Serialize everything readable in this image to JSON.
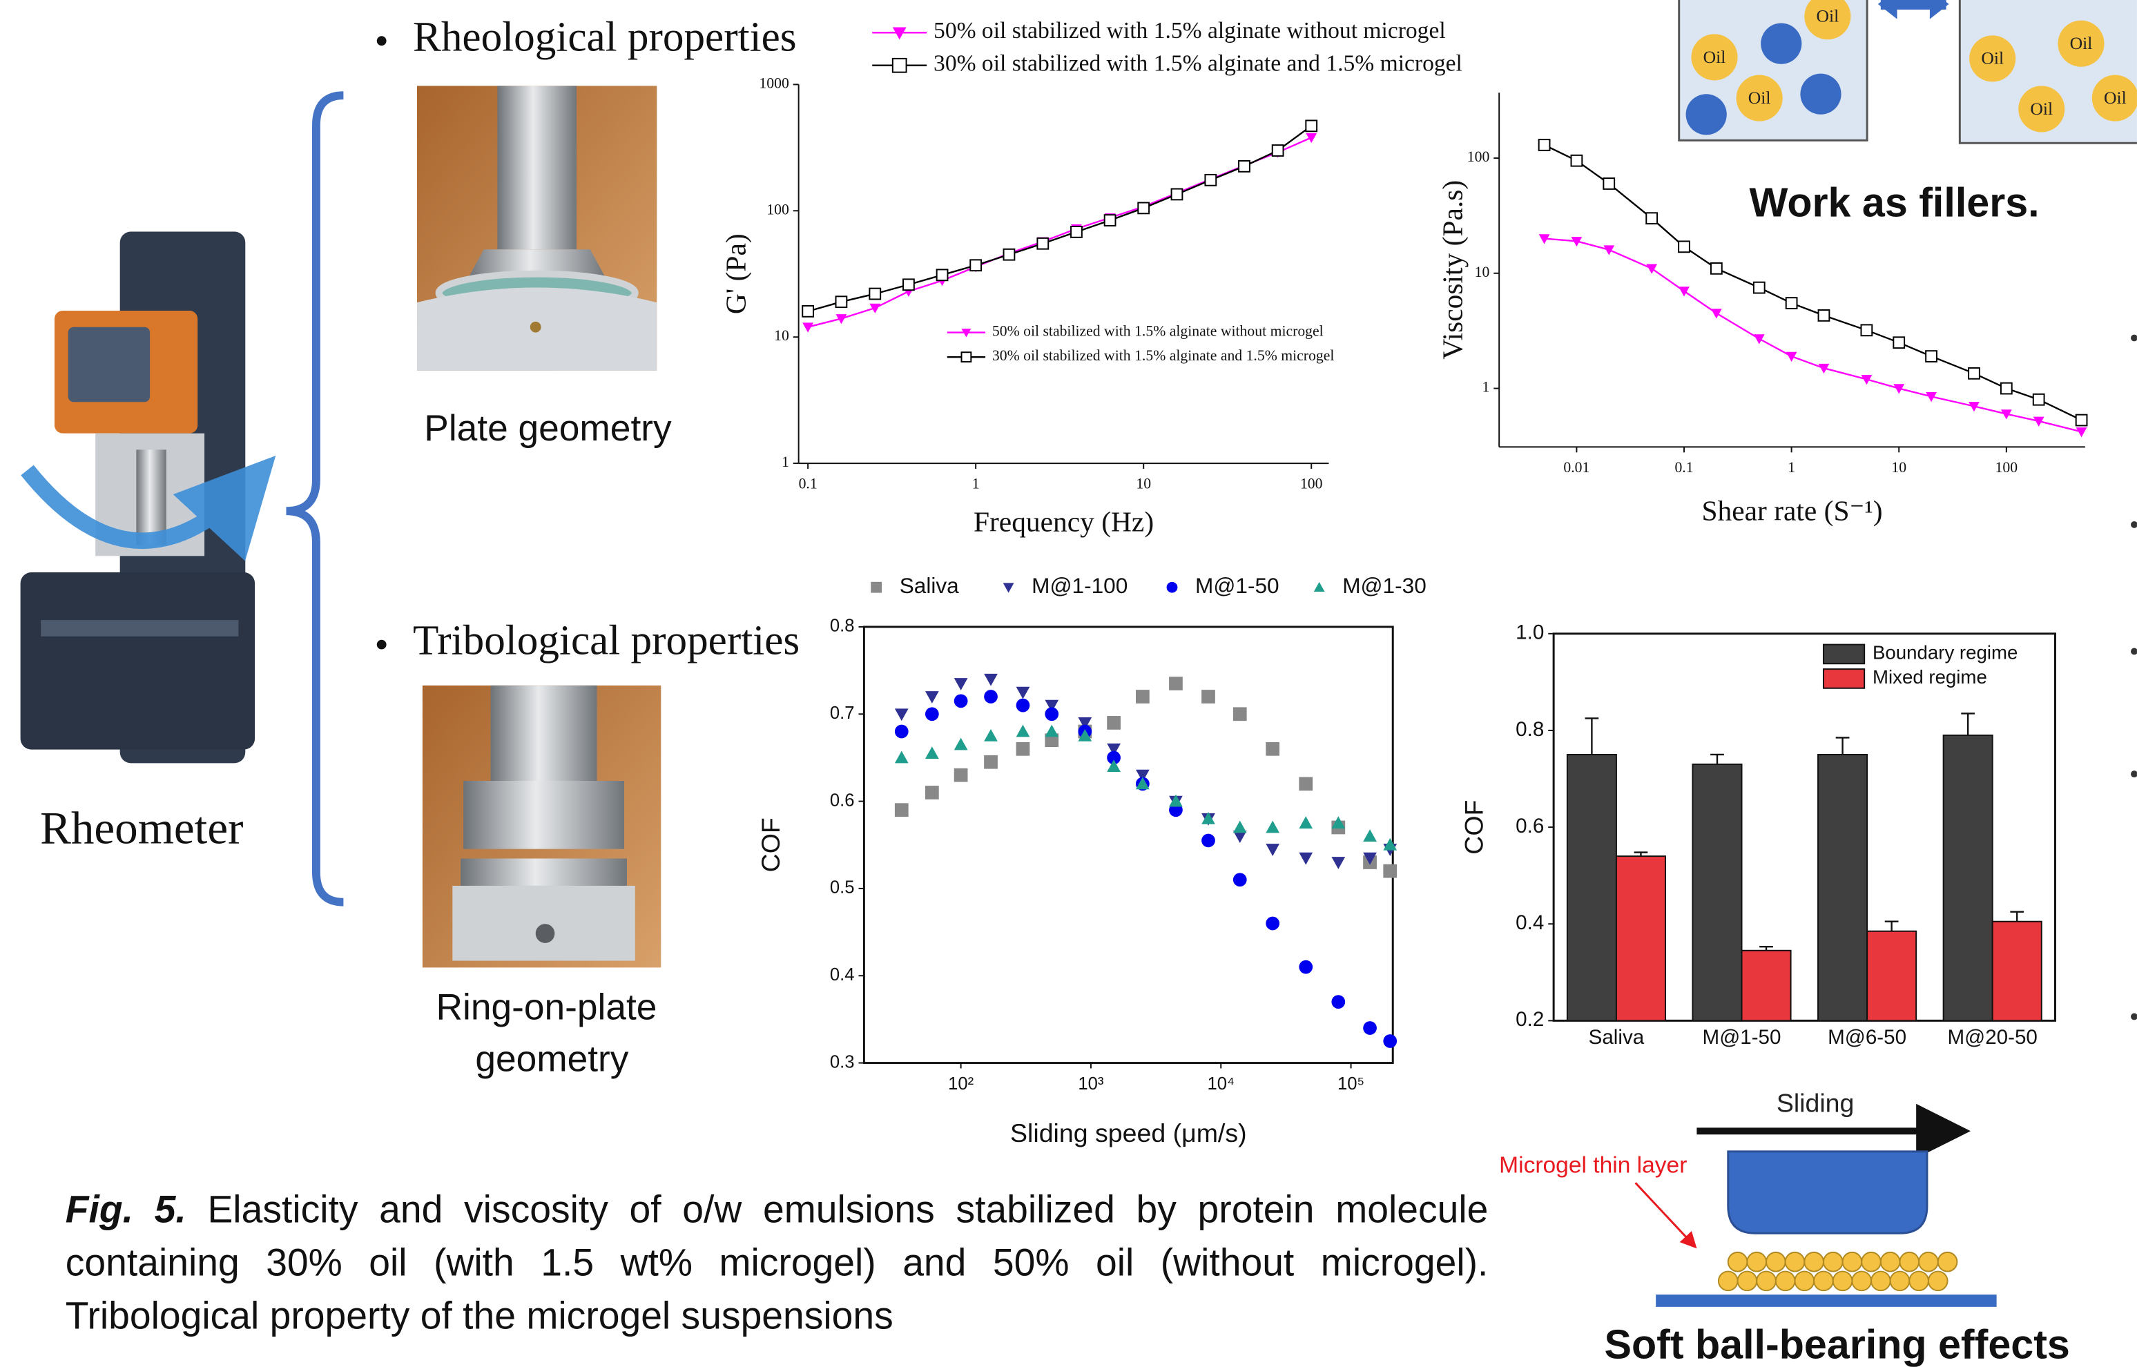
{
  "labels": {
    "rheological": "Rheological properties",
    "plate": "Plate geometry",
    "tribological": "Tribological properties",
    "ring": [
      "Ring-on-plate",
      "geometry"
    ],
    "rheometer": "Rheometer",
    "fillers": "Work as fillers.",
    "oil": "Oil",
    "sliding": "Sliding",
    "microgel_layer": "Microgel thin layer",
    "ball_bearing": "Soft ball-bearing effects"
  },
  "caption": {
    "label": "Fig. 5.",
    "text": "Elasticity and viscosity of o/w emulsions stabilized by protein molecule containing 30% oil (with 1.5 wt% microgel) and 50% oil (without microgel). Tribological property of the microgel suspensions"
  },
  "chart_data": [
    {
      "type": "line",
      "xlabel": "Frequency (Hz)",
      "ylabel": "G' (Pa)",
      "xscale": "log",
      "yscale": "log",
      "xlim": [
        0.088,
        127
      ],
      "ylim": [
        1,
        1000
      ],
      "xticks": [
        0.1,
        1,
        10,
        100
      ],
      "yticks": [
        1,
        10,
        100,
        1000
      ],
      "x": [
        0.1,
        0.158,
        0.251,
        0.398,
        0.631,
        1,
        1.58,
        2.51,
        3.98,
        6.31,
        10,
        15.8,
        25.1,
        39.8,
        63.1,
        100
      ],
      "series": [
        {
          "name": "50% oil stabilized with 1.5% alginate without microgel",
          "color": "#ff00ff",
          "marker": "triangle-down",
          "values": [
            12,
            14,
            17,
            23,
            28,
            36,
            46,
            57,
            72,
            88,
            108,
            138,
            178,
            228,
            290,
            380
          ]
        },
        {
          "name": "30% oil stabilized with 1.5% alginate and 1.5% microgel",
          "color": "#000000",
          "marker": "square-open",
          "values": [
            16,
            19,
            22,
            26,
            31,
            37,
            45,
            55,
            68,
            84,
            105,
            135,
            175,
            225,
            300,
            470
          ]
        }
      ]
    },
    {
      "type": "line",
      "xlabel": "Shear rate (S⁻¹)",
      "ylabel": "Viscosity (Pa.s)",
      "xscale": "log",
      "yscale": "log",
      "xlim": [
        0.0019,
        541
      ],
      "ylim": [
        0.31,
        370
      ],
      "xticks": [
        0.01,
        0.1,
        1,
        10,
        100
      ],
      "yticks": [
        1,
        10,
        100
      ],
      "x": [
        0.005,
        0.01,
        0.02,
        0.05,
        0.1,
        0.2,
        0.5,
        1,
        2,
        5,
        10,
        20,
        50,
        100,
        200,
        500
      ],
      "series": [
        {
          "color": "#ff00ff",
          "marker": "triangle-down",
          "values": [
            20,
            19,
            16,
            11,
            7,
            4.5,
            2.7,
            1.9,
            1.5,
            1.2,
            1.0,
            0.85,
            0.7,
            0.6,
            0.52,
            0.42
          ]
        },
        {
          "color": "#000000",
          "marker": "square-open",
          "values": [
            130,
            95,
            60,
            30,
            17,
            11,
            7.5,
            5.5,
            4.3,
            3.2,
            2.5,
            1.9,
            1.35,
            1.0,
            0.8,
            0.53
          ]
        }
      ]
    },
    {
      "type": "scatter",
      "xlabel": "Sliding speed (μm/s)",
      "ylabel": "COF",
      "xscale": "log",
      "xlim": [
        18,
        210000
      ],
      "ylim": [
        0.3,
        0.8
      ],
      "xticks": [
        {
          "value": 100,
          "label": "10²"
        },
        {
          "value": 1000,
          "label": "10³"
        },
        {
          "value": 10000,
          "label": "10⁴"
        },
        {
          "value": 100000,
          "label": "10⁵"
        }
      ],
      "yticks": [
        0.3,
        0.4,
        0.5,
        0.6,
        0.7,
        0.8
      ],
      "x": [
        35,
        60,
        100,
        170,
        300,
        500,
        900,
        1500,
        2500,
        4500,
        8000,
        14000,
        25000,
        45000,
        80000,
        140000,
        200000
      ],
      "series": [
        {
          "name": "Saliva",
          "color": "#888888",
          "marker": "square",
          "values": [
            0.59,
            0.61,
            0.63,
            0.645,
            0.66,
            0.67,
            0.68,
            0.69,
            0.72,
            0.735,
            0.72,
            0.7,
            0.66,
            0.62,
            0.57,
            0.53,
            0.52
          ]
        },
        {
          "name": "M@1-100",
          "color": "#2e3192",
          "marker": "triangle-down",
          "values": [
            0.7,
            0.72,
            0.735,
            0.74,
            0.725,
            0.71,
            0.69,
            0.66,
            0.63,
            0.6,
            0.58,
            0.56,
            0.545,
            0.535,
            0.53,
            0.535,
            0.545
          ]
        },
        {
          "name": "M@1-50",
          "color": "#0000ee",
          "marker": "circle",
          "values": [
            0.68,
            0.7,
            0.715,
            0.72,
            0.71,
            0.7,
            0.68,
            0.65,
            0.62,
            0.59,
            0.555,
            0.51,
            0.46,
            0.41,
            0.37,
            0.34,
            0.325
          ]
        },
        {
          "name": "M@1-30",
          "color": "#1f9e8e",
          "marker": "triangle-up",
          "values": [
            0.65,
            0.655,
            0.665,
            0.675,
            0.68,
            0.68,
            0.675,
            0.64,
            0.62,
            0.6,
            0.58,
            0.57,
            0.57,
            0.575,
            0.575,
            0.56,
            0.55
          ]
        }
      ]
    },
    {
      "type": "bar",
      "ylabel": "COF",
      "ylim": [
        0.2,
        1.0
      ],
      "yticks": [
        0.2,
        0.4,
        0.6,
        0.8,
        {
          "value": 1,
          "label": "1.0"
        }
      ],
      "categories": [
        "Saliva",
        "M@1-50",
        "M@6-50",
        "M@20-50"
      ],
      "series": [
        {
          "name": "Boundary regime",
          "color": "#404040",
          "values": [
            0.75,
            0.73,
            0.75,
            0.79
          ],
          "errors": [
            0.075,
            0.02,
            0.035,
            0.045
          ]
        },
        {
          "name": "Mixed regime",
          "color": "#e8383d",
          "values": [
            0.54,
            0.345,
            0.385,
            0.405
          ],
          "errors": [
            0.008,
            0.008,
            0.02,
            0.02
          ]
        }
      ]
    }
  ]
}
